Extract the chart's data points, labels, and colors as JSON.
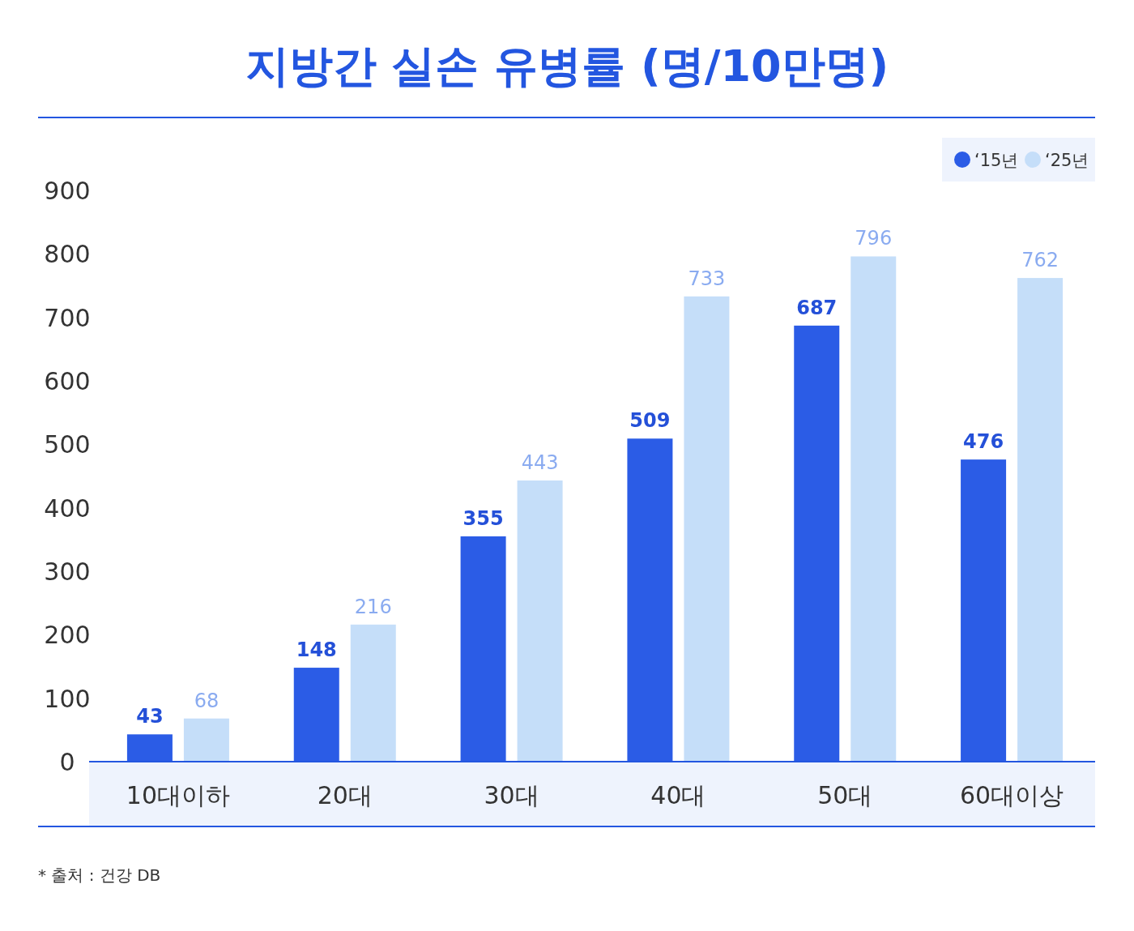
{
  "chart_data": {
    "type": "bar",
    "title": "지방간 실손 유병률 (명/10만명)",
    "categories": [
      "10대이하",
      "20대",
      "30대",
      "40대",
      "50대",
      "60대이상"
    ],
    "series": [
      {
        "name": "‘15년",
        "color": "#2b5ce6",
        "values": [
          43,
          148,
          355,
          509,
          687,
          476
        ]
      },
      {
        "name": "‘25년",
        "color": "#c5def9",
        "values": [
          68,
          216,
          443,
          733,
          796,
          762
        ]
      }
    ],
    "ylim": [
      0,
      900
    ],
    "yticks": [
      0,
      100,
      200,
      300,
      400,
      500,
      600,
      700,
      800,
      900
    ],
    "data_labels": true,
    "legend": "top right",
    "grid": false,
    "annotations": [
      "* 출처 : 건강 DB"
    ]
  }
}
